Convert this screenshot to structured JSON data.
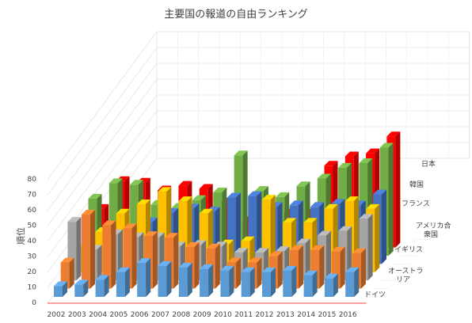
{
  "chart_data": {
    "type": "bar",
    "variant": "3d-column",
    "title": "主要国の報道の自由ランキング",
    "ylabel": "順位",
    "xlabel": "",
    "categories": [
      "2002",
      "2003",
      "2004",
      "2005",
      "2006",
      "2007",
      "2008",
      "2009",
      "2010",
      "2011",
      "2012",
      "2013",
      "2014",
      "2015",
      "2016"
    ],
    "ylim": [
      0,
      80
    ],
    "yticks": [
      0,
      10,
      20,
      30,
      40,
      50,
      60,
      70,
      80
    ],
    "grid": true,
    "series": [
      {
        "name": "ドイツ",
        "color": "#5B9BD5",
        "values": [
          7,
          8,
          11,
          16,
          22,
          20,
          19,
          18,
          17,
          16,
          16,
          17,
          14,
          12,
          16
        ]
      },
      {
        "name": "オーストラリア",
        "color": "#ED7D31",
        "values": [
          17,
          48,
          41,
          39,
          34,
          33,
          27,
          26,
          17,
          17,
          21,
          25,
          25,
          24,
          23
        ]
      },
      {
        "name": "イギリス",
        "color": "#A5A5A5",
        "values": [
          38,
          20,
          30,
          28,
          28,
          22,
          23,
          22,
          18,
          18,
          19,
          24,
          29,
          32,
          40
        ]
      },
      {
        "name": "アメリカ合衆国",
        "color": "#FFC000",
        "values": [
          15,
          26,
          38,
          44,
          52,
          46,
          38,
          18,
          20,
          47,
          32,
          32,
          41,
          46,
          41
        ]
      },
      {
        "name": "フランス",
        "color": "#4472C4",
        "values": [
          8,
          23,
          21,
          27,
          33,
          36,
          34,
          43,
          44,
          37,
          38,
          37,
          39,
          38,
          45
        ]
      },
      {
        "name": "韓国",
        "color": "#70AD47",
        "values": [
          37,
          47,
          46,
          33,
          31,
          36,
          41,
          65,
          42,
          38,
          45,
          50,
          57,
          60,
          70
        ]
      },
      {
        "name": "日本",
        "color": "#FF0000",
        "values": [
          25,
          43,
          42,
          37,
          40,
          38,
          29,
          17,
          11,
          22,
          22,
          53,
          59,
          61,
          72
        ]
      }
    ],
    "legend_placement": "right-depth-axis"
  }
}
